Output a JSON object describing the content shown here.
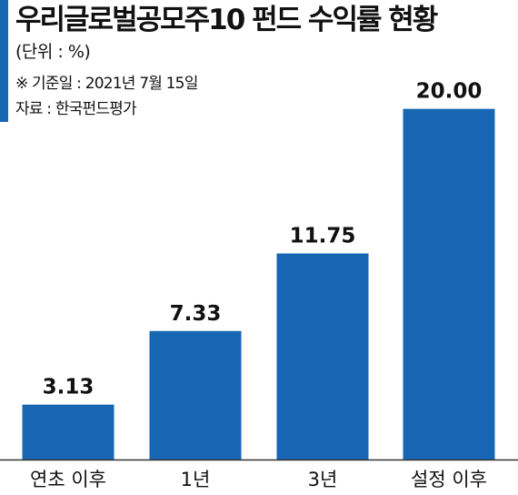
{
  "header": {
    "title": "우리글로벌공모주10 펀드 수익률 현황",
    "unit": "(단위 : %)",
    "base_date": "※ 기준일 : 2021년 7월 15일",
    "source": "자료 : 한국펀드평가"
  },
  "colors": {
    "bar": "#1766b3",
    "accent": "#1766b3",
    "baseline": "#333333"
  },
  "chart_data": {
    "type": "bar",
    "title": "우리글로벌공모주10 펀드 수익률 현황",
    "xlabel": "",
    "ylabel": "",
    "categories": [
      "연초 이후",
      "1년",
      "3년",
      "설정 이후"
    ],
    "values": [
      3.13,
      7.33,
      11.75,
      20.0
    ],
    "value_labels": [
      "3.13",
      "7.33",
      "11.75",
      "20.00"
    ],
    "ylim": [
      0,
      20.5
    ],
    "grid": false,
    "legend": "none"
  }
}
